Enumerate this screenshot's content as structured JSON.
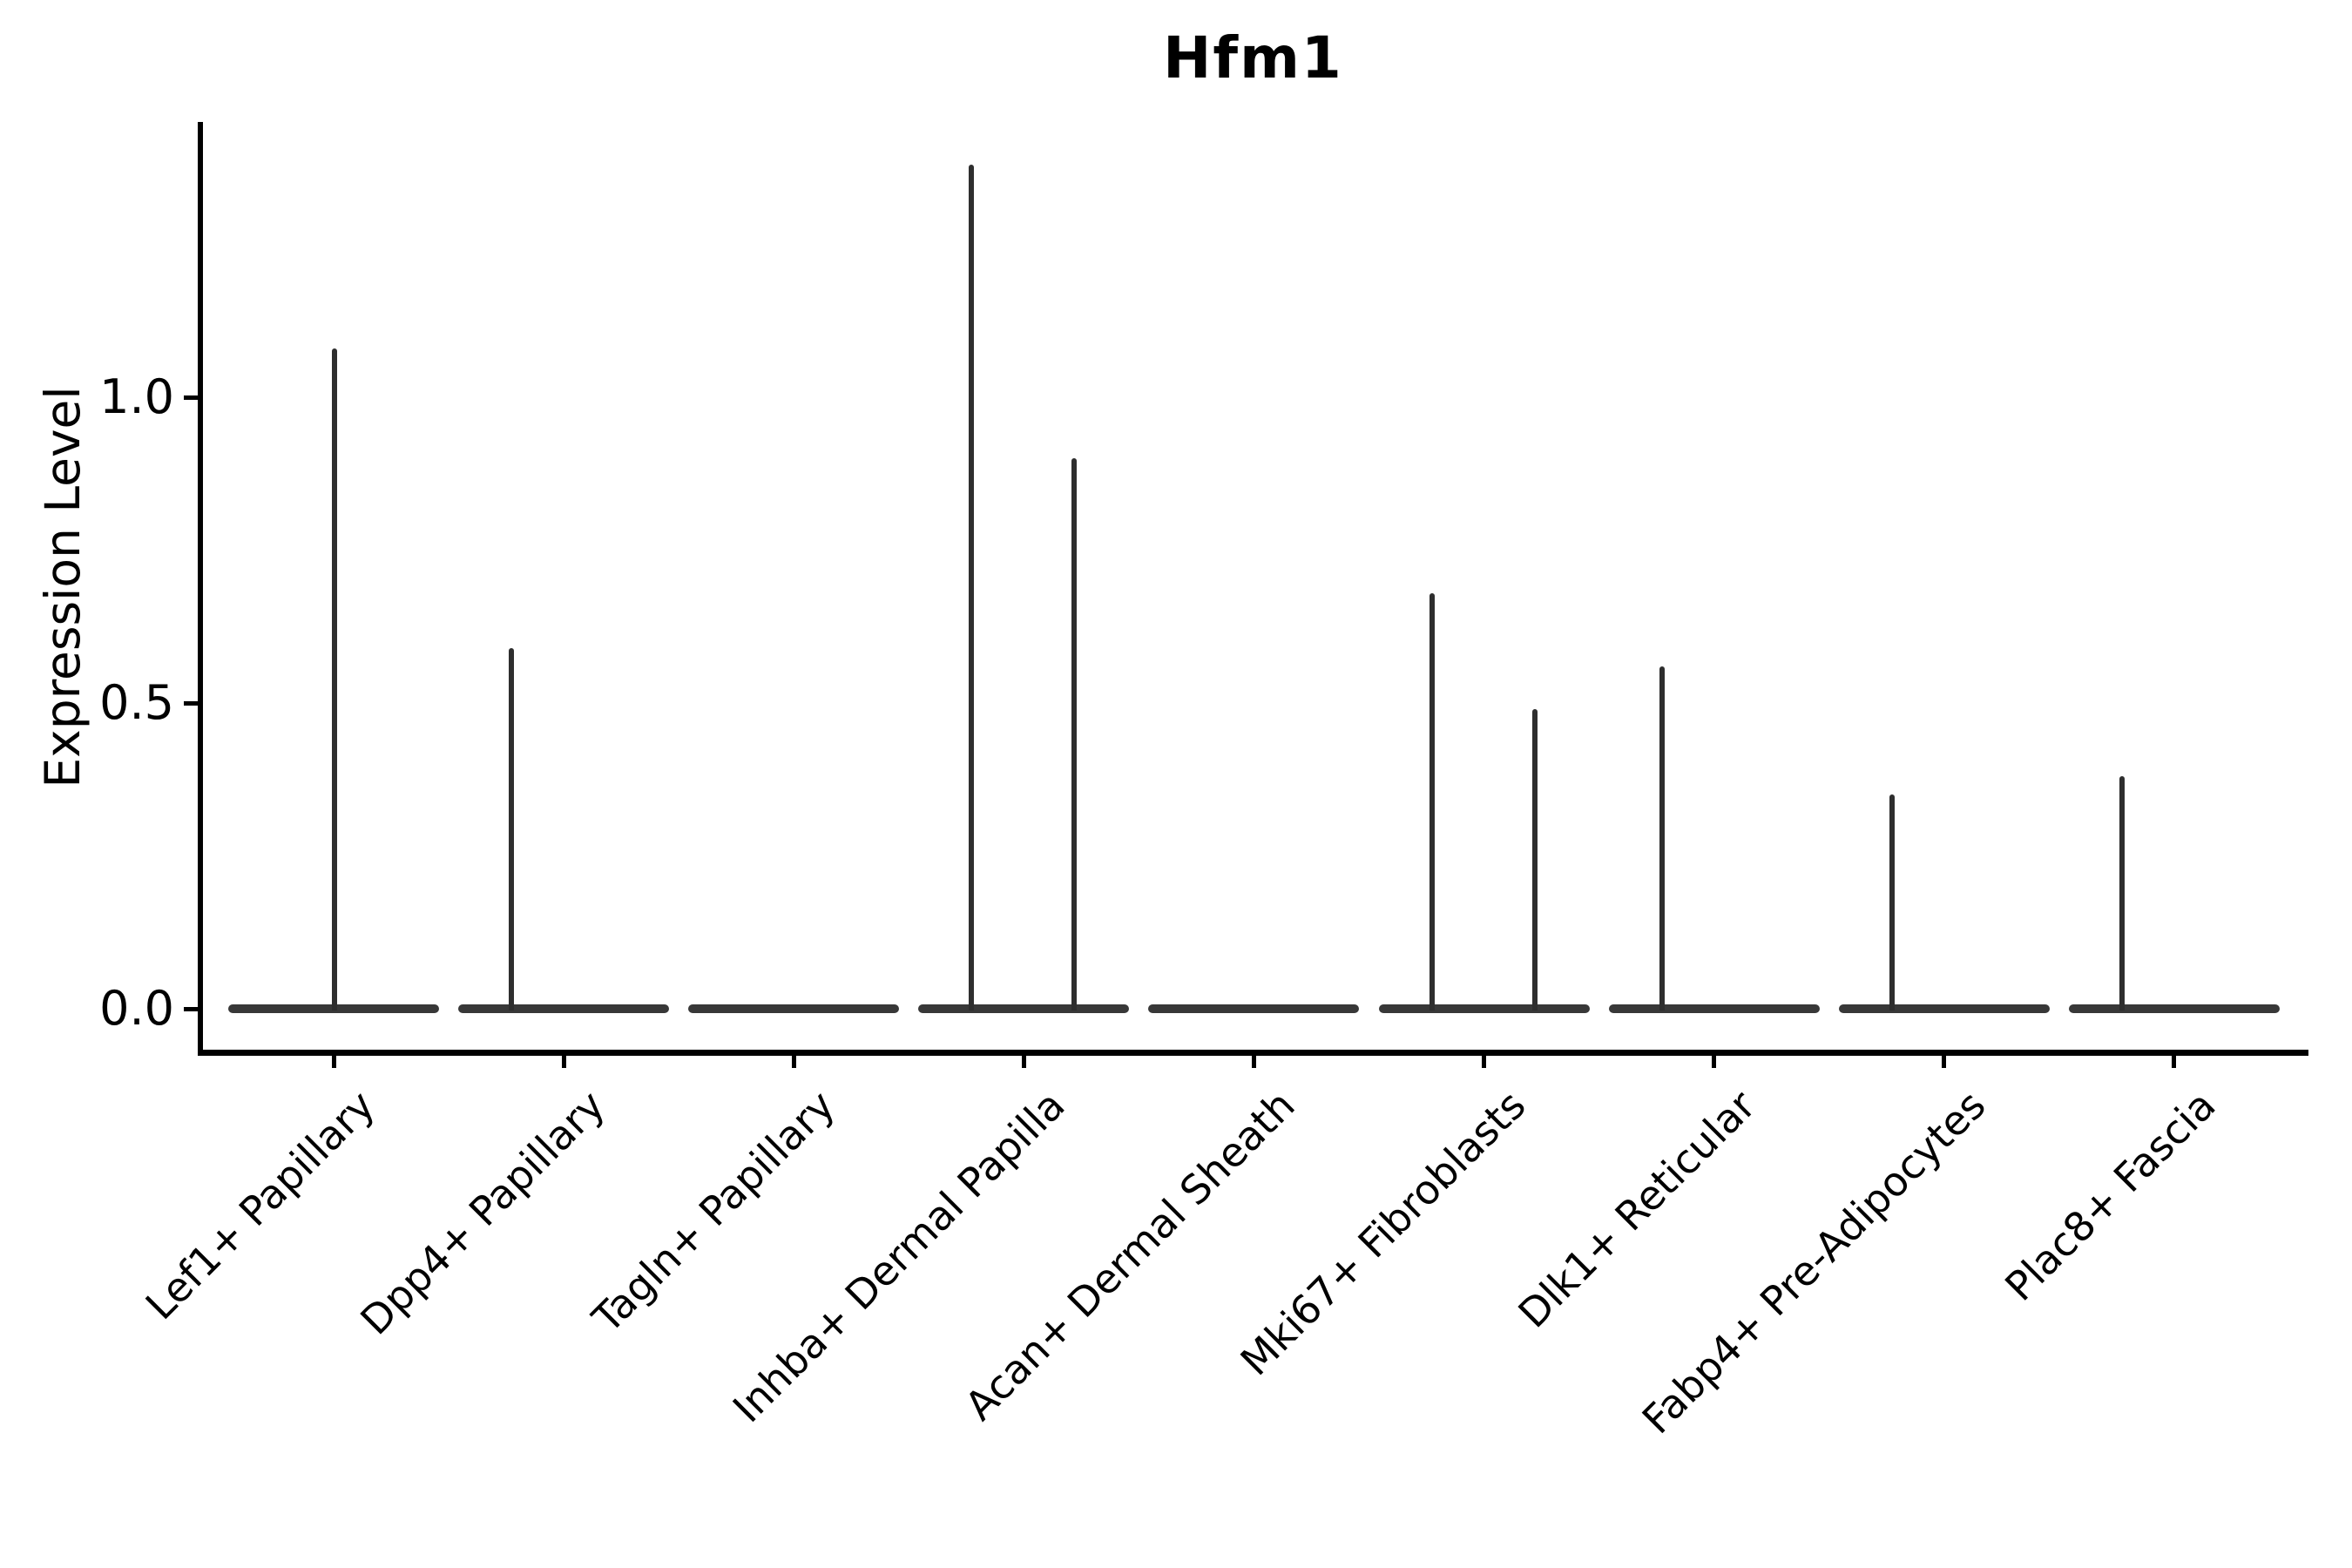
{
  "chart_data": {
    "type": "violin",
    "title": "Hfm1",
    "xlabel": "",
    "ylabel": "Expression Level",
    "yticks": [
      "0.0",
      "0.5",
      "1.0"
    ],
    "ylim": [
      -0.07,
      1.47
    ],
    "grid": false,
    "legend": "none",
    "categories": [
      "Lef1+ Papillary",
      "Dpp4+ Papillary",
      "Tagln+ Papillary",
      "Inhba+ Dermal Papilla",
      "Acan+ Dermal Sheath",
      "Mki67+ Fibroblasts",
      "Dlk1+ Reticular",
      "Fabp4+ Pre-Adipocytes",
      "Plac8+ Fascia"
    ],
    "violins": [
      {
        "category": "Lef1+ Papillary",
        "base_value": 0.0,
        "max_expression": 1.08,
        "peaks": [
          {
            "side": "center",
            "value": 1.08
          }
        ]
      },
      {
        "category": "Dpp4+ Papillary",
        "base_value": 0.0,
        "max_expression": 0.59,
        "peaks": [
          {
            "side": "left",
            "value": 0.59
          }
        ]
      },
      {
        "category": "Tagln+ Papillary",
        "base_value": 0.0,
        "max_expression": 0.0,
        "peaks": []
      },
      {
        "category": "Inhba+ Dermal Papilla",
        "base_value": 0.0,
        "max_expression": 1.38,
        "peaks": [
          {
            "side": "left",
            "value": 1.38
          },
          {
            "side": "right",
            "value": 0.9
          }
        ]
      },
      {
        "category": "Acan+ Dermal Sheath",
        "base_value": 0.0,
        "max_expression": 0.0,
        "peaks": []
      },
      {
        "category": "Mki67+ Fibroblasts",
        "base_value": 0.0,
        "max_expression": 0.68,
        "peaks": [
          {
            "side": "left",
            "value": 0.68
          },
          {
            "side": "right",
            "value": 0.49
          }
        ]
      },
      {
        "category": "Dlk1+ Reticular",
        "base_value": 0.0,
        "max_expression": 0.56,
        "peaks": [
          {
            "side": "left",
            "value": 0.56
          }
        ]
      },
      {
        "category": "Fabp4+ Pre-Adipocytes",
        "base_value": 0.0,
        "max_expression": 0.35,
        "peaks": [
          {
            "side": "left",
            "value": 0.35
          }
        ]
      },
      {
        "category": "Plac8+ Fascia",
        "base_value": 0.0,
        "max_expression": 0.38,
        "peaks": [
          {
            "side": "left",
            "value": 0.38
          }
        ]
      }
    ],
    "colors": {
      "violin_fill": "#383838",
      "spike": "#2e2e2e",
      "axis": "#000000",
      "background": "#ffffff"
    }
  }
}
